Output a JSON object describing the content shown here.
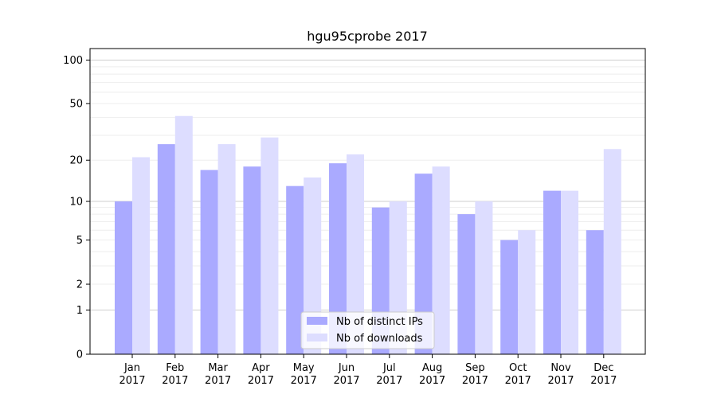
{
  "chart_data": {
    "type": "bar",
    "title": "hgu95cprobe 2017",
    "xlabel": "",
    "ylabel": "",
    "y_scale": "log(1+y)",
    "ylim": [
      0,
      120
    ],
    "y_ticks": [
      0,
      1,
      2,
      5,
      10,
      20,
      50,
      100
    ],
    "categories": [
      {
        "month": "Jan",
        "year": "2017"
      },
      {
        "month": "Feb",
        "year": "2017"
      },
      {
        "month": "Mar",
        "year": "2017"
      },
      {
        "month": "Apr",
        "year": "2017"
      },
      {
        "month": "May",
        "year": "2017"
      },
      {
        "month": "Jun",
        "year": "2017"
      },
      {
        "month": "Jul",
        "year": "2017"
      },
      {
        "month": "Aug",
        "year": "2017"
      },
      {
        "month": "Sep",
        "year": "2017"
      },
      {
        "month": "Oct",
        "year": "2017"
      },
      {
        "month": "Nov",
        "year": "2017"
      },
      {
        "month": "Dec",
        "year": "2017"
      }
    ],
    "series": [
      {
        "name": "Nb of distinct IPs",
        "color": "#aaaaff",
        "values": [
          10,
          26,
          17,
          18,
          13,
          19,
          9,
          16,
          8,
          5,
          12,
          6
        ]
      },
      {
        "name": "Nb of downloads",
        "color": "#ddddff",
        "values": [
          21,
          41,
          26,
          29,
          15,
          22,
          10,
          18,
          10,
          6,
          12,
          24
        ]
      }
    ],
    "grid": true,
    "legend_position": "bottom-center"
  }
}
